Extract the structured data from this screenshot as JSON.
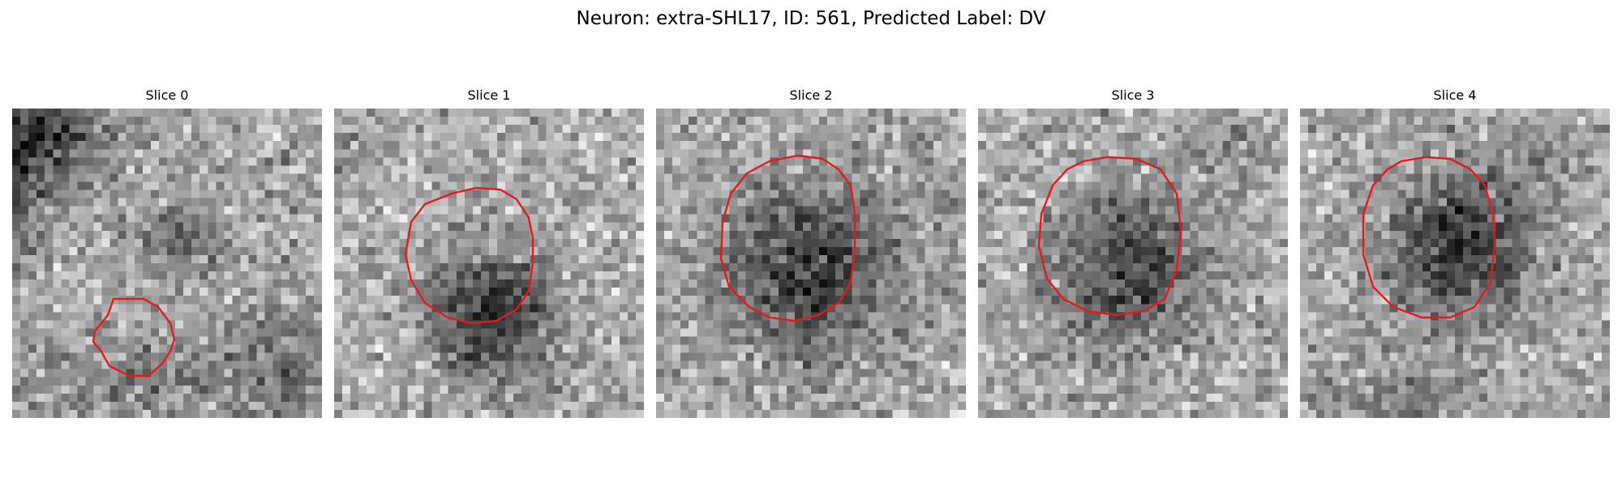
{
  "figure": {
    "title": "Neuron: extra-SHL17, ID: 561, Predicted Label: DV",
    "contour_color": "#e41a1c"
  },
  "panels": [
    {
      "title": "Slice 0"
    },
    {
      "title": "Slice 1"
    },
    {
      "title": "Slice 2"
    },
    {
      "title": "Slice 3"
    },
    {
      "title": "Slice 4"
    }
  ]
}
